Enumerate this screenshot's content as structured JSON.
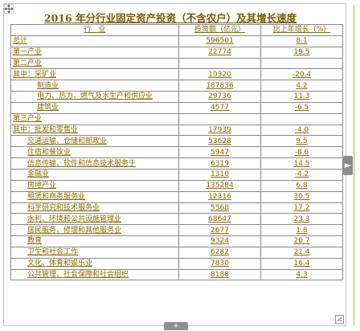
{
  "title": "2016 年分行业固定资产投资（不含农户）及其增长速度",
  "header": {
    "industry": "行　业",
    "investment": "投资额（亿元）",
    "growth": "比上年增长（%）"
  },
  "rows": [
    {
      "label": "总计",
      "value": "596501",
      "growth": "8.1",
      "indent": 0
    },
    {
      "label": "第一产业",
      "value": "22774",
      "growth": "19.5",
      "indent": 0
    },
    {
      "label": "第二产业",
      "value": "",
      "growth": "",
      "indent": 0
    },
    {
      "label": "其中：采矿业",
      "value": "10320",
      "growth": "-20.4",
      "indent": 0
    },
    {
      "label": "制造业",
      "value": "187836",
      "growth": "4.2",
      "indent": 2
    },
    {
      "label": "电力、热力、燃气及水生产和供应业",
      "value": "29736",
      "growth": "11.3",
      "indent": 2
    },
    {
      "label": "建筑业",
      "value": "4577",
      "growth": "-6.5",
      "indent": 2
    },
    {
      "label": "第三产业",
      "value": "",
      "growth": "",
      "indent": 0
    },
    {
      "label": "其中：批发和零售业",
      "value": "17939",
      "growth": "-4.0",
      "indent": 0
    },
    {
      "label": "交通运输、仓储和邮政业",
      "value": "53628",
      "growth": "9.5",
      "indent": 1
    },
    {
      "label": "住宿和餐饮业",
      "value": "5947",
      "growth": "-8.6",
      "indent": 1
    },
    {
      "label": "信息传输、软件和信息技术服务于",
      "value": "6319",
      "growth": "14.5",
      "indent": 1
    },
    {
      "label": "金融业",
      "value": "1310",
      "growth": "-4.2",
      "indent": 1
    },
    {
      "label": "房地产业",
      "value": "135284",
      "growth": "6.8",
      "indent": 1
    },
    {
      "label": "租赁和商务服务业",
      "value": "12316",
      "growth": "30.5",
      "indent": 1
    },
    {
      "label": "科学研究和技术服务业",
      "value": "5568",
      "growth": "17.2",
      "indent": 1
    },
    {
      "label": "水利、环境和公共设施管理业",
      "value": "68647",
      "growth": "23.3",
      "indent": 1
    },
    {
      "label": "居民服务、修理和其他服务业",
      "value": "2677",
      "growth": "1.8",
      "indent": 1
    },
    {
      "label": "教育",
      "value": "9324",
      "growth": "20.7",
      "indent": 1
    },
    {
      "label": "卫生和社会工作",
      "value": "6282",
      "growth": "21.4",
      "indent": 1
    },
    {
      "label": "文化、体育和娱乐业",
      "value": "7830",
      "growth": "16.4",
      "indent": 1
    },
    {
      "label": "公共管理、社会保障和社会组织",
      "value": "8188",
      "growth": "4.3",
      "indent": 1
    }
  ],
  "icons": {
    "corner": "move-handle-icon",
    "side": "expand-right-icon",
    "bottom": "add-row-icon"
  }
}
